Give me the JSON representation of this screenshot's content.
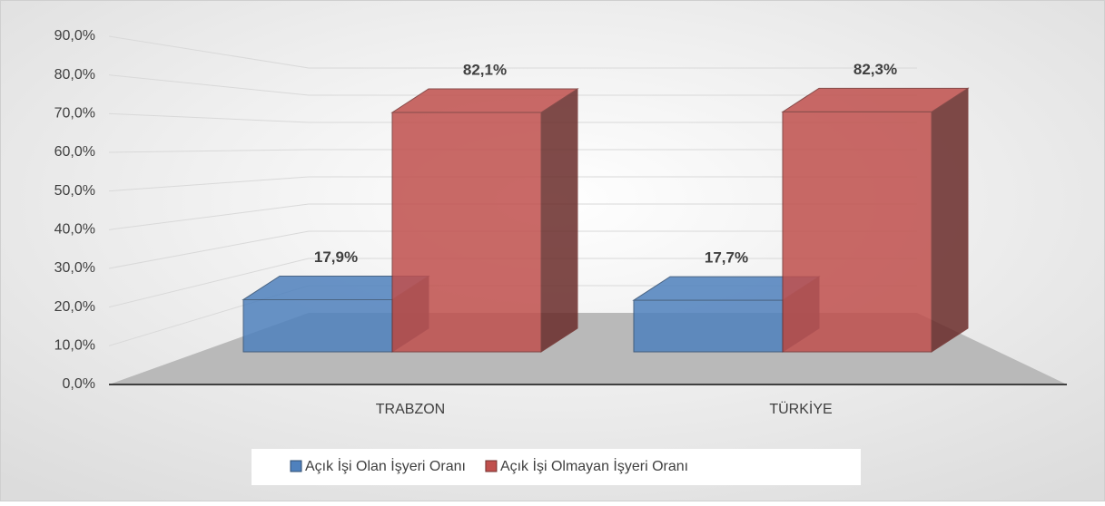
{
  "chart_data": {
    "type": "bar3d",
    "categories": [
      "TRABZON",
      "TÜRKİYE"
    ],
    "series": [
      {
        "name": "Açık İşi Olan İşyeri Oranı",
        "color": "#4f81bd",
        "values": [
          17.9,
          17.7
        ],
        "value_labels": [
          "17,9%",
          "17,7%"
        ]
      },
      {
        "name": "Açık İşi Olmayan İşyeri Oranı",
        "color": "#c0504d",
        "values": [
          82.1,
          82.3
        ],
        "value_labels": [
          "82,1%",
          "82,3%"
        ]
      }
    ],
    "ylim": [
      0,
      90
    ],
    "yticks": [
      {
        "value": 0,
        "label": "0,0%"
      },
      {
        "value": 10,
        "label": "10,0%"
      },
      {
        "value": 20,
        "label": "20,0%"
      },
      {
        "value": 30,
        "label": "30,0%"
      },
      {
        "value": 40,
        "label": "40,0%"
      },
      {
        "value": 50,
        "label": "50,0%"
      },
      {
        "value": 60,
        "label": "60,0%"
      },
      {
        "value": 70,
        "label": "70,0%"
      },
      {
        "value": 80,
        "label": "80,0%"
      },
      {
        "value": 90,
        "label": "90,0%"
      }
    ],
    "legend": "bottom",
    "grid": true
  }
}
